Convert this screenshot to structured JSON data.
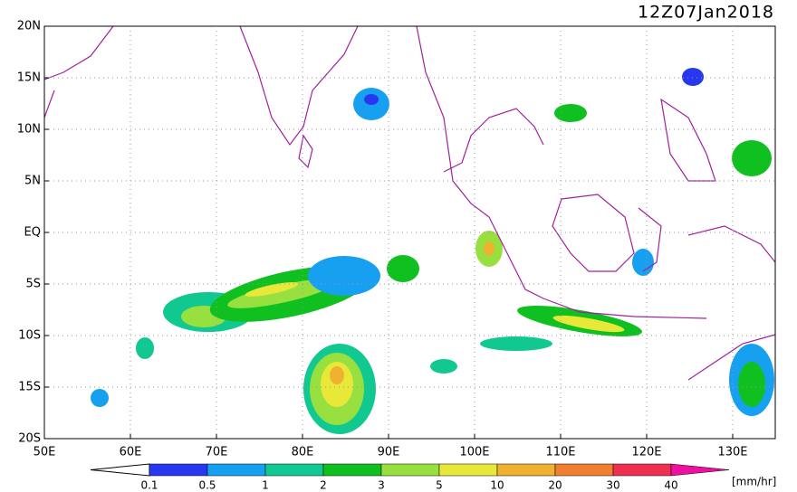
{
  "header": {
    "title": "12Z07Jan2018"
  },
  "map": {
    "lat_labels": [
      "20N",
      "15N",
      "10N",
      "5N",
      "EQ",
      "5S",
      "10S",
      "15S",
      "20S"
    ],
    "lon_labels": [
      "50E",
      "60E",
      "70E",
      "80E",
      "90E",
      "100E",
      "110E",
      "120E",
      "130E"
    ]
  },
  "colorbar": {
    "labels": [
      "0.1",
      "0.5",
      "1",
      "2",
      "3",
      "5",
      "10",
      "20",
      "30",
      "40"
    ],
    "colors": [
      "#ffffff",
      "#2838f0",
      "#18a0f0",
      "#10c890",
      "#10c020",
      "#98e040",
      "#e8e838",
      "#f0b030",
      "#f08030",
      "#f03050",
      "#f010a0"
    ],
    "unit": "[mm/hr]"
  }
}
